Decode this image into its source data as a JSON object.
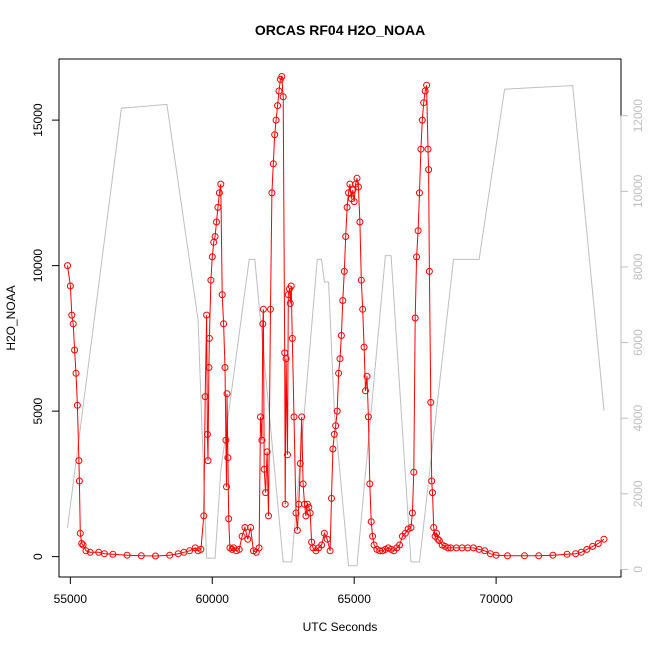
{
  "chart_data": {
    "type": "line",
    "title": "ORCAS RF04 H2O_NOAA",
    "xlabel": "UTC Seconds",
    "ylabel": "H2O_NOAA",
    "xlim": [
      54600,
      74400
    ],
    "ylim": [
      -700,
      17100
    ],
    "x_ticks": [
      55000,
      60000,
      65000,
      70000
    ],
    "x_tick_labels": [
      "55000",
      "60000",
      "65000",
      "70000"
    ],
    "y_ticks": [
      0,
      5000,
      10000,
      15000
    ],
    "y_tick_labels": [
      "0",
      "5000",
      "10000",
      "15000"
    ],
    "y2lim": [
      -200,
      13500
    ],
    "y2_ticks": [
      0,
      2000,
      4000,
      6000,
      8000,
      10000,
      12000
    ],
    "y2_tick_labels": [
      "0",
      "2000",
      "4000",
      "6000",
      "8000",
      "10000",
      "12000"
    ],
    "grid": false,
    "series": [
      {
        "style": "line+points",
        "color": "#ff0000",
        "axis": "left",
        "points": [
          [
            54900,
            10000
          ],
          [
            55000,
            9300
          ],
          [
            55050,
            8300
          ],
          [
            55100,
            8000
          ],
          [
            55150,
            7100
          ],
          [
            55200,
            6300
          ],
          [
            55250,
            5200
          ],
          [
            55300,
            3300
          ],
          [
            55320,
            2600
          ],
          [
            55350,
            800
          ],
          [
            55400,
            450
          ],
          [
            55450,
            400
          ],
          [
            55550,
            200
          ],
          [
            55700,
            150
          ],
          [
            56000,
            150
          ],
          [
            56200,
            100
          ],
          [
            56500,
            80
          ],
          [
            57000,
            50
          ],
          [
            57500,
            30
          ],
          [
            58000,
            20
          ],
          [
            58500,
            50
          ],
          [
            58800,
            100
          ],
          [
            59000,
            150
          ],
          [
            59200,
            200
          ],
          [
            59400,
            300
          ],
          [
            59500,
            200
          ],
          [
            59600,
            250
          ],
          [
            59700,
            1400
          ],
          [
            59750,
            5500
          ],
          [
            59800,
            8300
          ],
          [
            59830,
            4200
          ],
          [
            59850,
            3300
          ],
          [
            59880,
            6500
          ],
          [
            59900,
            7500
          ],
          [
            59950,
            9500
          ],
          [
            60000,
            10300
          ],
          [
            60050,
            10800
          ],
          [
            60100,
            11000
          ],
          [
            60150,
            11500
          ],
          [
            60200,
            12000
          ],
          [
            60250,
            12500
          ],
          [
            60300,
            12800
          ],
          [
            60350,
            9000
          ],
          [
            60400,
            8000
          ],
          [
            60450,
            6500
          ],
          [
            60480,
            4000
          ],
          [
            60500,
            2400
          ],
          [
            60520,
            5600
          ],
          [
            60550,
            3400
          ],
          [
            60580,
            1300
          ],
          [
            60620,
            300
          ],
          [
            60700,
            250
          ],
          [
            60750,
            300
          ],
          [
            60850,
            200
          ],
          [
            60950,
            250
          ],
          [
            61050,
            700
          ],
          [
            61150,
            1000
          ],
          [
            61250,
            600
          ],
          [
            61350,
            1000
          ],
          [
            61450,
            200
          ],
          [
            61550,
            150
          ],
          [
            61650,
            300
          ],
          [
            61700,
            4800
          ],
          [
            61750,
            4000
          ],
          [
            61780,
            8000
          ],
          [
            61800,
            8500
          ],
          [
            61830,
            3000
          ],
          [
            61880,
            2200
          ],
          [
            61930,
            3600
          ],
          [
            61980,
            1400
          ],
          [
            62050,
            8500
          ],
          [
            62100,
            12500
          ],
          [
            62150,
            13500
          ],
          [
            62200,
            14500
          ],
          [
            62250,
            15000
          ],
          [
            62300,
            15500
          ],
          [
            62350,
            16000
          ],
          [
            62400,
            16400
          ],
          [
            62450,
            16500
          ],
          [
            62500,
            15800
          ],
          [
            62550,
            7000
          ],
          [
            62570,
            1800
          ],
          [
            62600,
            6800
          ],
          [
            62650,
            3500
          ],
          [
            62680,
            9000
          ],
          [
            62720,
            9200
          ],
          [
            62750,
            8700
          ],
          [
            62780,
            9300
          ],
          [
            62820,
            7500
          ],
          [
            62880,
            4800
          ],
          [
            62950,
            1500
          ],
          [
            63000,
            900
          ],
          [
            63050,
            1800
          ],
          [
            63100,
            3200
          ],
          [
            63150,
            4800
          ],
          [
            63200,
            2500
          ],
          [
            63250,
            1800
          ],
          [
            63300,
            1400
          ],
          [
            63350,
            1800
          ],
          [
            63400,
            1700
          ],
          [
            63450,
            1500
          ],
          [
            63500,
            500
          ],
          [
            63550,
            300
          ],
          [
            63650,
            200
          ],
          [
            63750,
            300
          ],
          [
            63850,
            400
          ],
          [
            63950,
            800
          ],
          [
            64050,
            600
          ],
          [
            64150,
            200
          ],
          [
            64200,
            2000
          ],
          [
            64250,
            3700
          ],
          [
            64300,
            4200
          ],
          [
            64350,
            4500
          ],
          [
            64400,
            5000
          ],
          [
            64450,
            6300
          ],
          [
            64500,
            6800
          ],
          [
            64550,
            7600
          ],
          [
            64600,
            8800
          ],
          [
            64650,
            9800
          ],
          [
            64700,
            11000
          ],
          [
            64750,
            12000
          ],
          [
            64800,
            12500
          ],
          [
            64850,
            12800
          ],
          [
            64900,
            12300
          ],
          [
            64950,
            12600
          ],
          [
            65000,
            12200
          ],
          [
            65050,
            12800
          ],
          [
            65100,
            13000
          ],
          [
            65150,
            12700
          ],
          [
            65200,
            11500
          ],
          [
            65250,
            9500
          ],
          [
            65300,
            8500
          ],
          [
            65350,
            7200
          ],
          [
            65400,
            5700
          ],
          [
            65450,
            6200
          ],
          [
            65500,
            4800
          ],
          [
            65550,
            2500
          ],
          [
            65600,
            1200
          ],
          [
            65650,
            700
          ],
          [
            65700,
            400
          ],
          [
            65800,
            250
          ],
          [
            65900,
            200
          ],
          [
            66000,
            200
          ],
          [
            66100,
            250
          ],
          [
            66200,
            300
          ],
          [
            66300,
            250
          ],
          [
            66400,
            200
          ],
          [
            66500,
            300
          ],
          [
            66600,
            400
          ],
          [
            66700,
            700
          ],
          [
            66800,
            800
          ],
          [
            66900,
            950
          ],
          [
            67000,
            1000
          ],
          [
            67050,
            1500
          ],
          [
            67100,
            2900
          ],
          [
            67150,
            8200
          ],
          [
            67200,
            10300
          ],
          [
            67250,
            11200
          ],
          [
            67300,
            12500
          ],
          [
            67350,
            14000
          ],
          [
            67400,
            15000
          ],
          [
            67450,
            15600
          ],
          [
            67500,
            16000
          ],
          [
            67550,
            16200
          ],
          [
            67600,
            14000
          ],
          [
            67620,
            13300
          ],
          [
            67650,
            9800
          ],
          [
            67700,
            5300
          ],
          [
            67730,
            2600
          ],
          [
            67760,
            2200
          ],
          [
            67800,
            1000
          ],
          [
            67850,
            700
          ],
          [
            67900,
            800
          ],
          [
            67950,
            600
          ],
          [
            68000,
            550
          ],
          [
            68100,
            400
          ],
          [
            68200,
            350
          ],
          [
            68300,
            300
          ],
          [
            68400,
            300
          ],
          [
            68600,
            300
          ],
          [
            68800,
            300
          ],
          [
            69000,
            300
          ],
          [
            69200,
            300
          ],
          [
            69400,
            250
          ],
          [
            69600,
            200
          ],
          [
            69800,
            100
          ],
          [
            70000,
            50
          ],
          [
            70400,
            30
          ],
          [
            71000,
            30
          ],
          [
            71500,
            30
          ],
          [
            72000,
            50
          ],
          [
            72500,
            80
          ],
          [
            72800,
            100
          ],
          [
            73000,
            150
          ],
          [
            73200,
            250
          ],
          [
            73400,
            350
          ],
          [
            73600,
            450
          ],
          [
            73800,
            600
          ]
        ]
      },
      {
        "style": "line",
        "color": "#bebebe",
        "axis": "right",
        "points": [
          [
            54900,
            1100
          ],
          [
            56800,
            12200
          ],
          [
            58400,
            12300
          ],
          [
            59500,
            6600
          ],
          [
            59800,
            300
          ],
          [
            60100,
            300
          ],
          [
            60300,
            2600
          ],
          [
            61300,
            8200
          ],
          [
            61500,
            8200
          ],
          [
            62500,
            200
          ],
          [
            62800,
            200
          ],
          [
            63700,
            8200
          ],
          [
            63850,
            8200
          ],
          [
            63950,
            7600
          ],
          [
            64100,
            7600
          ],
          [
            64300,
            4200
          ],
          [
            64800,
            100
          ],
          [
            65100,
            100
          ],
          [
            66100,
            8300
          ],
          [
            66300,
            8300
          ],
          [
            67000,
            200
          ],
          [
            67300,
            200
          ],
          [
            68500,
            8200
          ],
          [
            69400,
            8200
          ],
          [
            70300,
            12700
          ],
          [
            72700,
            12800
          ],
          [
            73800,
            4200
          ]
        ]
      }
    ]
  }
}
